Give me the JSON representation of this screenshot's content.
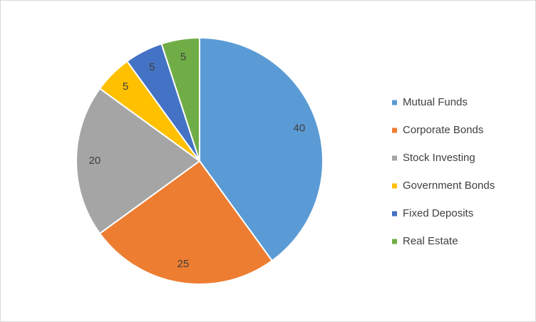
{
  "chart_data": {
    "type": "pie",
    "categories": [
      "Mutual Funds",
      "Corporate Bonds",
      "Stock Investing",
      "Government Bonds",
      "Fixed Deposits",
      "Real Estate"
    ],
    "values": [
      40,
      25,
      20,
      5,
      5,
      5
    ],
    "colors": [
      "#5b9bd5",
      "#ed7d31",
      "#a5a5a5",
      "#ffc000",
      "#4472c4",
      "#70ad47"
    ],
    "legend": "right"
  }
}
